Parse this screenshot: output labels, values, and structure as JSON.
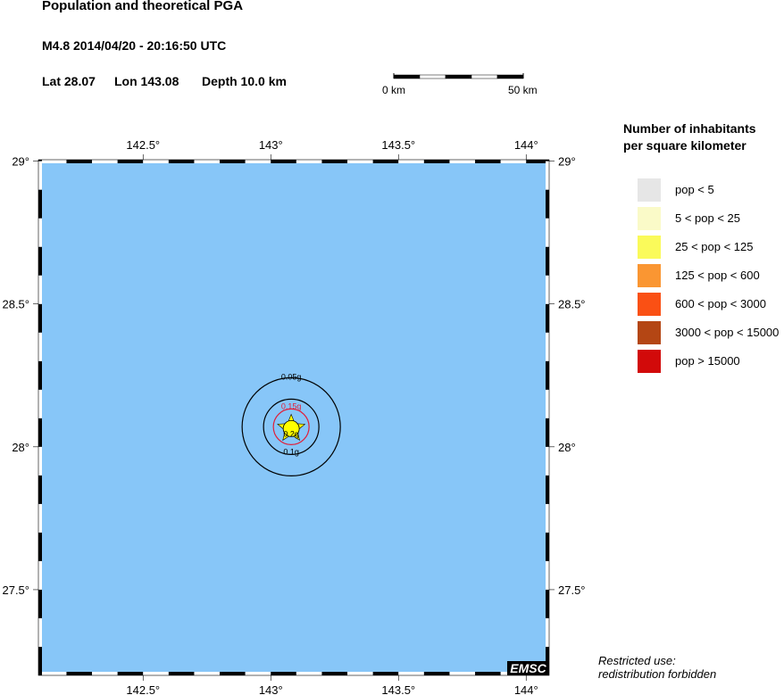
{
  "header": {
    "title": "Population and theoretical PGA",
    "event": "M4.8  2014/04/20 - 20:16:50 UTC",
    "lat_label": "Lat 28.07",
    "lon_label": "Lon 143.08",
    "depth_label": "Depth  10.0 km"
  },
  "scale_bar": {
    "start_label": "0 km",
    "end_label": "50 km",
    "length_km": 50
  },
  "map": {
    "ocean_color": "#87c6f8",
    "lon_range": [
      142.09,
      144.09
    ],
    "lat_range": [
      27.2,
      29.005
    ],
    "lon_ticks": [
      {
        "value": 142.5,
        "label": "142.5°"
      },
      {
        "value": 143,
        "label": "143°"
      },
      {
        "value": 143.5,
        "label": "143.5°"
      },
      {
        "value": 144,
        "label": "144°"
      }
    ],
    "lat_ticks": [
      {
        "value": 29,
        "label": "29°"
      },
      {
        "value": 28.5,
        "label": "28.5°"
      },
      {
        "value": 28,
        "label": "28°"
      },
      {
        "value": 27.5,
        "label": "27.5°"
      }
    ],
    "epicenter": {
      "lat": 28.07,
      "lon": 143.08,
      "color": "#ffff00"
    },
    "pga_contours": [
      {
        "label": "0.05g",
        "color": "#000000"
      },
      {
        "label": "0.1g",
        "color": "#000000"
      },
      {
        "label": "0.15g",
        "color": "#e0203a"
      },
      {
        "label": "0.2g",
        "color": "#000000"
      }
    ],
    "logo": "EMSC"
  },
  "legend": {
    "title_line1": "Number of inhabitants",
    "title_line2": "per square kilometer",
    "items": [
      {
        "label": "pop < 5",
        "color": "#e6e6e6"
      },
      {
        "label": "5 < pop < 25",
        "color": "#fafac8"
      },
      {
        "label": "25 < pop < 125",
        "color": "#fafa5a"
      },
      {
        "label": "125 < pop < 600",
        "color": "#fa9632"
      },
      {
        "label": "600 < pop < 3000",
        "color": "#fa5014"
      },
      {
        "label": "3000 < pop < 15000",
        "color": "#b44614"
      },
      {
        "label": "pop > 15000",
        "color": "#d20a0a"
      }
    ]
  },
  "footer": {
    "line1": "Restricted use:",
    "line2": "redistribution forbidden"
  }
}
